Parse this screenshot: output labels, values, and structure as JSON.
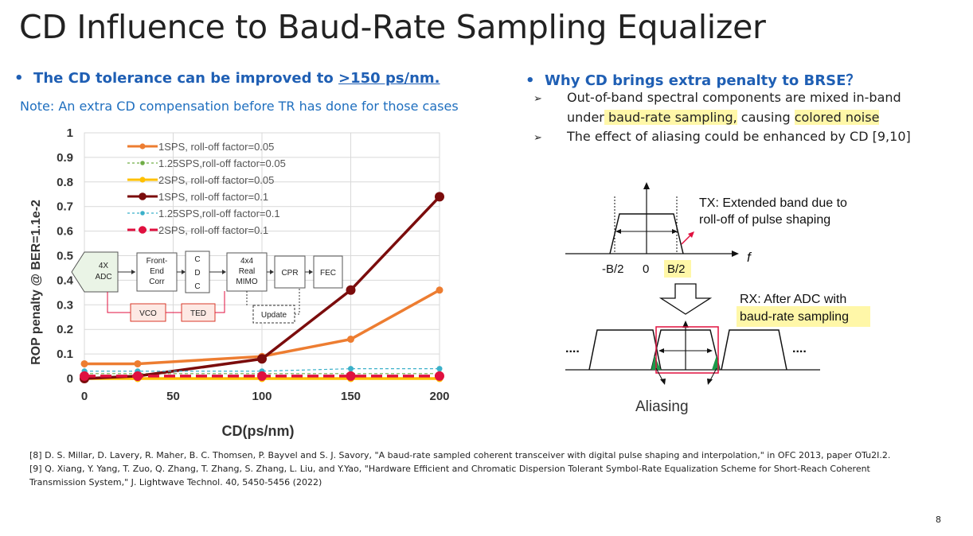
{
  "slide": {
    "title": "CD Influence to Baud-Rate Sampling Equalizer",
    "page_number": "8"
  },
  "left": {
    "bullet_prefix": "The CD tolerance can be improved to ",
    "bullet_highlight": ">150 ps/nm.",
    "note": "Note: An extra CD compensation before TR has done for those cases"
  },
  "right": {
    "bullet": "Why CD brings extra penalty to BRSE？",
    "sub1_line1": "Out-of-band spectral components are mixed in-band",
    "sub1_line2_pre": "under",
    "sub1_line2_hl1": " baud-rate sampling,",
    "sub1_line2_mid": " causing ",
    "sub1_line2_hl2": "colored noise",
    "sub2": "The effect of aliasing could be enhanced by CD [9,10]"
  },
  "diagram": {
    "tx_label_line1": "TX: Extended band due to",
    "tx_label_line2": "roll-off of pulse shaping",
    "f_label": "f",
    "neg_b2": "-B/2",
    "zero": "0",
    "pos_b2": "B/2",
    "rx_label_line1": "RX: After ADC with",
    "rx_label_line2": "baud-rate sampling",
    "dots_left": "....",
    "dots_right": "....",
    "aliasing": "Aliasing"
  },
  "block_diagram": {
    "adc": [
      "4X",
      "ADC"
    ],
    "frontend": [
      "Front-",
      "End",
      "Corr"
    ],
    "cdc": [
      "C",
      "D",
      "C"
    ],
    "mimo": [
      "4x4",
      "Real",
      "MIMO"
    ],
    "cpr": "CPR",
    "fec": "FEC",
    "vco": "VCO",
    "ted": "TED",
    "update": "Update"
  },
  "references": [
    "[8] D. S. Millar, D. Lavery, R. Maher, B. C. Thomsen, P. Bayvel and S. J. Savory, \"A baud-rate sampled coherent transceiver with digital pulse shaping and interpolation,\" in OFC 2013, paper OTu2I.2.",
    "[9]  Q. Xiang, Y. Yang, T. Zuo, Q. Zhang, T. Zhang, S. Zhang, L. Liu, and Y.Yao, \"Hardware Efficient and Chromatic Dispersion Tolerant Symbol-Rate Equalization Scheme for Short-Reach Coherent",
    "Transmission System,\" J. Lightwave Technol. 40, 5450-5456 (2022)"
  ],
  "chart_data": {
    "type": "line",
    "xlabel": "CD(ps/nm)",
    "ylabel": "ROP penalty @ BER=1.1e-2",
    "xlim": [
      0,
      200
    ],
    "ylim": [
      0,
      1
    ],
    "xticks": [
      0,
      50,
      100,
      150,
      200
    ],
    "yticks": [
      "0",
      "0.1",
      "0.2",
      "0.3",
      "0.4",
      "0.5",
      "0.6",
      "0.7",
      "0.8",
      "0.9",
      "1"
    ],
    "grid": true,
    "legend_position": "top-left",
    "series": [
      {
        "name": "1SPS, roll-off factor=0.05",
        "color": "#ed7d31",
        "dash": "solid",
        "x": [
          0,
          30,
          100,
          150,
          200
        ],
        "values": [
          0.06,
          0.06,
          0.09,
          0.16,
          0.36
        ]
      },
      {
        "name": "1.25SPS,roll-off factor=0.05",
        "color": "#70ad47",
        "dash": "dashed",
        "x": [
          0,
          30,
          100,
          150,
          200
        ],
        "values": [
          0.02,
          0.02,
          0.02,
          0.02,
          0.02
        ]
      },
      {
        "name": "2SPS, roll-off factor=0.05",
        "color": "#ffc000",
        "dash": "solid",
        "x": [
          0,
          30,
          100,
          150,
          200
        ],
        "values": [
          0.0,
          0.0,
          0.0,
          0.0,
          0.0
        ]
      },
      {
        "name": "1SPS, roll-off factor=0.1",
        "color": "#7b0c0c",
        "dash": "solid",
        "x": [
          0,
          30,
          100,
          150,
          200
        ],
        "values": [
          0.0,
          0.01,
          0.08,
          0.36,
          0.74
        ]
      },
      {
        "name": "1.25SPS,roll-off factor=0.1",
        "color": "#3bb0c9",
        "dash": "dashed",
        "x": [
          0,
          30,
          100,
          150,
          200
        ],
        "values": [
          0.03,
          0.03,
          0.03,
          0.04,
          0.04
        ]
      },
      {
        "name": "2SPS, roll-off factor=0.1",
        "color": "#e0103f",
        "dash": "dashed",
        "x": [
          0,
          30,
          100,
          150,
          200
        ],
        "values": [
          0.01,
          0.01,
          0.01,
          0.01,
          0.01
        ]
      }
    ]
  }
}
